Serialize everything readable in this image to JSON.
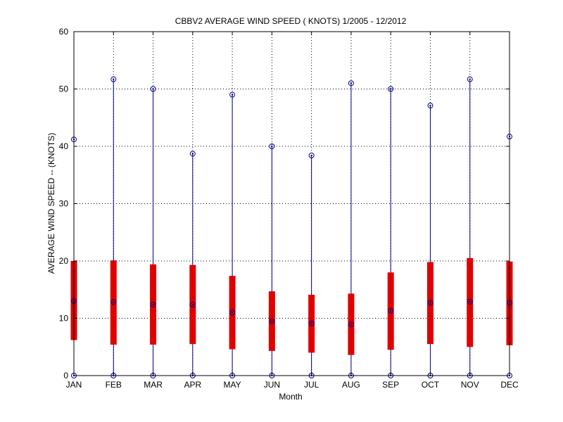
{
  "chart_data": {
    "type": "box",
    "title": "CBBV2  AVERAGE WIND SPEED ( KNOTS) 1/2005 - 12/2012",
    "xlabel": "Month",
    "ylabel": "AVERAGE WIND SPEED -- (KNOTS)",
    "ylim": [
      0,
      60
    ],
    "yticks": [
      0,
      10,
      20,
      30,
      40,
      50,
      60
    ],
    "grid": true,
    "categories": [
      "JAN",
      "FEB",
      "MAR",
      "APR",
      "MAY",
      "JUN",
      "JUL",
      "AUG",
      "SEP",
      "OCT",
      "NOV",
      "DEC"
    ],
    "min": [
      0,
      0,
      0,
      0,
      0,
      0,
      0,
      0,
      0,
      0,
      0,
      0
    ],
    "max": [
      41.2,
      51.7,
      50.0,
      38.7,
      49.0,
      40.0,
      38.4,
      51.0,
      50.0,
      47.1,
      51.7,
      41.7
    ],
    "q1": [
      6.2,
      5.4,
      5.4,
      5.5,
      4.6,
      4.3,
      4.0,
      3.6,
      4.5,
      5.5,
      5.0,
      5.3
    ],
    "q3": [
      20.0,
      20.1,
      19.4,
      19.3,
      17.4,
      14.7,
      14.1,
      14.3,
      18.0,
      19.8,
      20.5,
      19.9
    ],
    "median": [
      13.0,
      12.8,
      12.4,
      12.4,
      11.0,
      9.5,
      9.1,
      8.9,
      11.3,
      12.7,
      12.9,
      12.7
    ],
    "colors": {
      "whisker": "#00008B",
      "box": "#E00000",
      "marker": "#000080",
      "axis": "#000000",
      "background": "#FFFFFF"
    }
  }
}
